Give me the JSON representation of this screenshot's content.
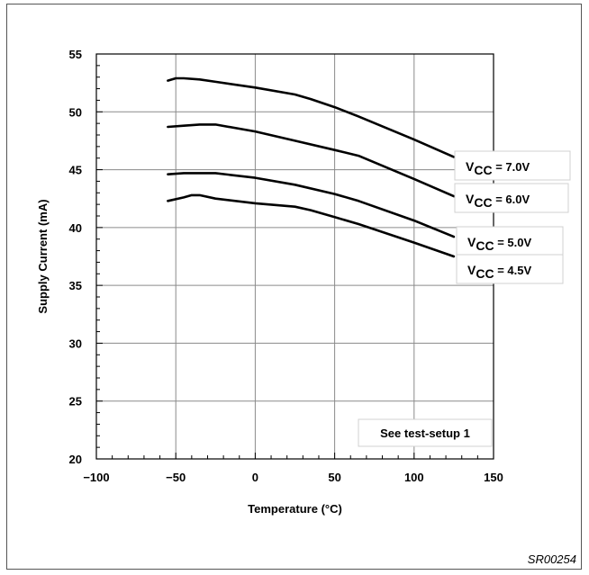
{
  "figure_id": "SR00254",
  "chart_data": {
    "type": "line",
    "xlabel": "Temperature (°C)",
    "ylabel": "Supply Current (mA)",
    "xlim": [
      -100,
      150
    ],
    "ylim": [
      20,
      55
    ],
    "x_ticks": [
      -100,
      -50,
      0,
      50,
      100,
      150
    ],
    "x_tick_labels": [
      "−100",
      "−50",
      "0",
      "50",
      "100",
      "150"
    ],
    "y_ticks": [
      20,
      25,
      30,
      35,
      40,
      45,
      50,
      55
    ],
    "y_tick_labels": [
      "20",
      "25",
      "30",
      "35",
      "40",
      "45",
      "50",
      "55"
    ],
    "grid": true,
    "line_color": "#000000",
    "series": [
      {
        "name": "VCC = 7.0V",
        "sub": "CC",
        "rest": " = 7.0V",
        "x": [
          -55,
          -50,
          -45,
          -35,
          -25,
          0,
          25,
          35,
          50,
          65,
          100,
          125
        ],
        "y": [
          52.7,
          52.9,
          52.9,
          52.8,
          52.6,
          52.1,
          51.5,
          51.1,
          50.4,
          49.6,
          47.6,
          46.1
        ]
      },
      {
        "name": "VCC = 6.0V",
        "sub": "CC",
        "rest": " = 6.0V",
        "x": [
          -55,
          -45,
          -35,
          -25,
          0,
          25,
          50,
          65,
          100,
          125
        ],
        "y": [
          48.7,
          48.8,
          48.9,
          48.9,
          48.3,
          47.5,
          46.7,
          46.2,
          44.2,
          42.7
        ]
      },
      {
        "name": "VCC = 5.0V",
        "sub": "CC",
        "rest": " = 5.0V",
        "x": [
          -55,
          -45,
          -35,
          -25,
          0,
          25,
          50,
          65,
          100,
          125
        ],
        "y": [
          44.6,
          44.7,
          44.7,
          44.7,
          44.3,
          43.7,
          42.9,
          42.3,
          40.6,
          39.2
        ]
      },
      {
        "name": "VCC = 4.5V",
        "sub": "CC",
        "rest": " = 4.5V",
        "x": [
          -55,
          -45,
          -40,
          -35,
          -25,
          0,
          25,
          35,
          50,
          65,
          100,
          125
        ],
        "y": [
          42.3,
          42.6,
          42.8,
          42.8,
          42.5,
          42.1,
          41.8,
          41.5,
          40.9,
          40.3,
          38.7,
          37.5
        ]
      }
    ],
    "annotations": [
      {
        "text": "See test-setup 1"
      }
    ]
  }
}
